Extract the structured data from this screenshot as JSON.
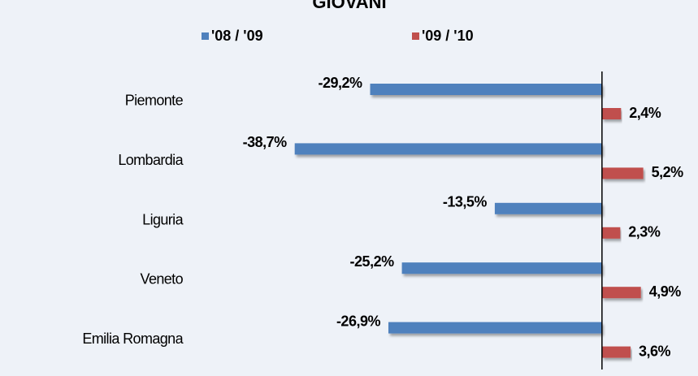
{
  "chart_data": {
    "type": "bar",
    "orientation": "horizontal",
    "title": "GIOVANI",
    "categories": [
      "Piemonte",
      "Lombardia",
      "Liguria",
      "Veneto",
      "Emilia Romagna"
    ],
    "series": [
      {
        "name": "'08 / '09",
        "color": "#4f81bd",
        "values": [
          -29.2,
          -38.7,
          -13.5,
          -25.2,
          -26.9
        ],
        "value_labels": [
          "-29,2%",
          "-38,7%",
          "-13,5%",
          "-25,2%",
          "-26,9%"
        ]
      },
      {
        "name": "'09 / '10",
        "color": "#c0504d",
        "values": [
          2.4,
          5.2,
          2.3,
          4.9,
          3.6
        ],
        "value_labels": [
          "2,4%",
          "5,2%",
          "2,3%",
          "4,9%",
          "3,6%"
        ]
      }
    ],
    "xlim": [
      -40,
      8
    ],
    "legend": "top"
  }
}
